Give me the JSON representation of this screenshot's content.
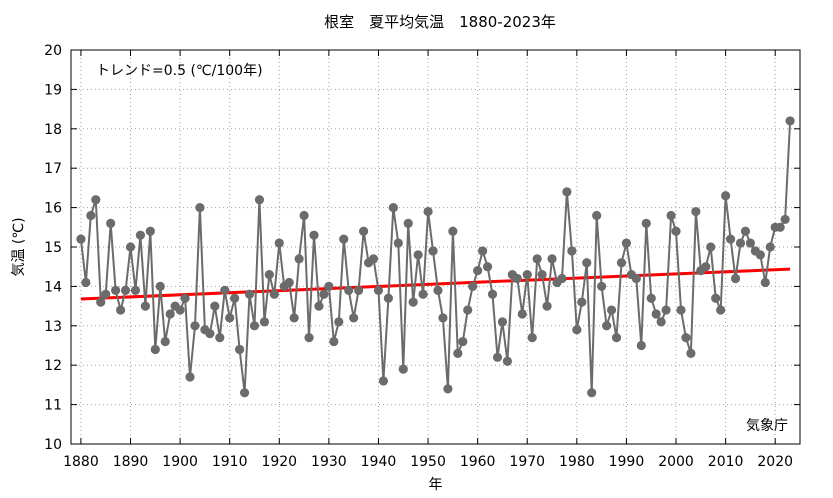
{
  "chart_data": {
    "type": "line",
    "title": "根室　夏平均気温　1880-2023年",
    "xlabel": "年",
    "ylabel": "気温 (℃)",
    "xlim": [
      1878,
      2025
    ],
    "ylim": [
      10,
      20
    ],
    "xticks": [
      1880,
      1890,
      1900,
      1910,
      1920,
      1930,
      1940,
      1950,
      1960,
      1970,
      1980,
      1990,
      2000,
      2010,
      2020
    ],
    "yticks": [
      10,
      11,
      12,
      13,
      14,
      15,
      16,
      17,
      18,
      19,
      20
    ],
    "grid": true,
    "trend_label": "トレンド=0.5 (℃/100年)",
    "source_label": "気象庁",
    "colors": {
      "series": "#6b6b6b",
      "trend": "#ff0000",
      "grid": "#a0a0a0"
    },
    "series": [
      {
        "x": [
          1880,
          1881,
          1882,
          1883,
          1884,
          1885,
          1886,
          1887,
          1888,
          1889,
          1890,
          1891,
          1892,
          1893,
          1894,
          1895,
          1896,
          1897,
          1898,
          1899,
          1900,
          1901,
          1902,
          1903,
          1904,
          1905,
          1906,
          1907,
          1908,
          1909,
          1910,
          1911,
          1912,
          1913,
          1914,
          1915,
          1916,
          1917,
          1918,
          1919,
          1920,
          1921,
          1922,
          1923,
          1924,
          1925,
          1926,
          1927,
          1928,
          1929,
          1930,
          1931,
          1932,
          1933,
          1934,
          1935,
          1936,
          1937,
          1938,
          1939,
          1940,
          1941,
          1942,
          1943,
          1944,
          1945,
          1946,
          1947,
          1948,
          1949,
          1950,
          1951,
          1952,
          1953,
          1954,
          1955,
          1956,
          1957,
          1958,
          1959,
          1960,
          1961,
          1962,
          1963,
          1964,
          1965,
          1966,
          1967,
          1968,
          1969,
          1970,
          1971,
          1972,
          1973,
          1974,
          1975,
          1976,
          1977,
          1978,
          1979,
          1980,
          1981,
          1982,
          1983,
          1984,
          1985,
          1986,
          1987,
          1988,
          1989,
          1990,
          1991,
          1992,
          1993,
          1994,
          1995,
          1996,
          1997,
          1998,
          1999,
          2000,
          2001,
          2002,
          2003,
          2004,
          2005,
          2006,
          2007,
          2008,
          2009,
          2010,
          2011,
          2012,
          2013,
          2014,
          2015,
          2016,
          2017,
          2018,
          2019,
          2020,
          2021,
          2022,
          2023
        ],
        "y": [
          15.2,
          14.1,
          15.8,
          16.2,
          13.6,
          13.8,
          15.6,
          13.9,
          13.4,
          13.9,
          15.0,
          13.9,
          15.3,
          13.5,
          15.4,
          12.4,
          14.0,
          12.6,
          13.3,
          13.5,
          13.4,
          13.7,
          11.7,
          13.0,
          16.0,
          12.9,
          12.8,
          13.5,
          12.7,
          13.9,
          13.2,
          13.7,
          12.4,
          11.3,
          13.8,
          13.0,
          16.2,
          13.1,
          14.3,
          13.8,
          15.1,
          14.0,
          14.1,
          13.2,
          14.7,
          15.8,
          12.7,
          15.3,
          13.5,
          13.8,
          14.0,
          12.6,
          13.1,
          15.2,
          13.9,
          13.2,
          13.9,
          15.4,
          14.6,
          14.7,
          13.9,
          11.6,
          13.7,
          16.0,
          15.1,
          11.9,
          15.6,
          13.6,
          14.8,
          13.8,
          15.9,
          14.9,
          13.9,
          13.2,
          11.4,
          15.4,
          12.3,
          12.6,
          13.4,
          14.0,
          14.4,
          14.9,
          14.5,
          13.8,
          12.2,
          13.1,
          12.1,
          14.3,
          14.2,
          13.3,
          14.3,
          12.7,
          14.7,
          14.3,
          13.5,
          14.7,
          14.1,
          14.2,
          16.4,
          14.9,
          12.9,
          13.6,
          14.6,
          11.3,
          15.8,
          14.0,
          13.0,
          13.4,
          12.7,
          14.6,
          15.1,
          14.3,
          14.2,
          12.5,
          15.6,
          13.7,
          13.3,
          13.1,
          13.4,
          15.8,
          15.4,
          13.4,
          12.7,
          12.3,
          15.9,
          14.4,
          14.5,
          15.0,
          13.7,
          13.4,
          16.3,
          15.2,
          14.2,
          15.1,
          15.4,
          15.1,
          14.9,
          14.8,
          14.1,
          15.0,
          15.5,
          15.5,
          15.7,
          18.2
        ]
      }
    ],
    "trend": {
      "x": [
        1880,
        2023
      ],
      "y": [
        13.68,
        14.44
      ]
    }
  }
}
